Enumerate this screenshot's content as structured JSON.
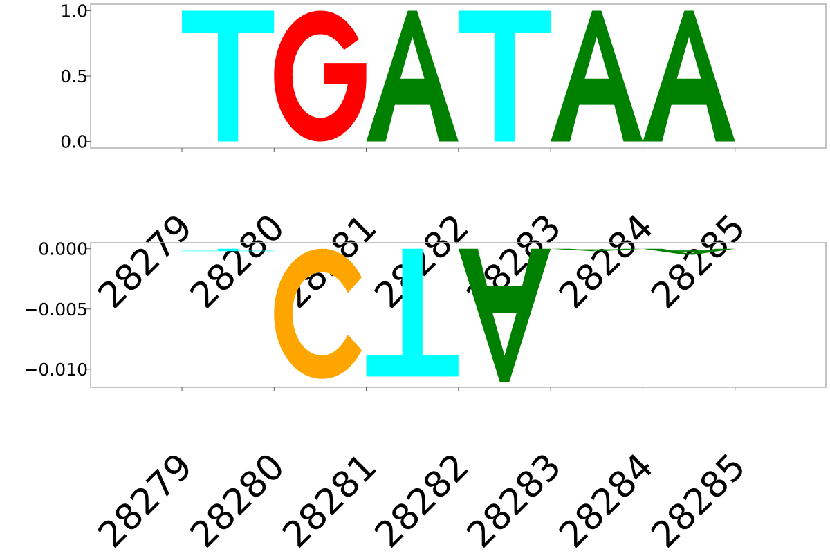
{
  "chart_data": [
    {
      "type": "sequence-logo",
      "panel": "top",
      "ylim": [
        -0.05,
        1.05
      ],
      "yticks": [
        {
          "value": 0.0,
          "label": "0.0"
        },
        {
          "value": 0.5,
          "label": "0.5"
        },
        {
          "value": 1.0,
          "label": "1.0"
        }
      ],
      "x_positions": [
        28279,
        28280,
        28281,
        28282,
        28283,
        28284,
        28285
      ],
      "xtick_labels": [
        "28279",
        "28280",
        "28281",
        "28282",
        "28283",
        "28284",
        "28285"
      ],
      "letters": [
        {
          "position": 28279,
          "base": "T",
          "value": 1.0
        },
        {
          "position": 28280,
          "base": "G",
          "value": 1.0
        },
        {
          "position": 28281,
          "base": "A",
          "value": 1.0
        },
        {
          "position": 28282,
          "base": "T",
          "value": 1.0
        },
        {
          "position": 28283,
          "base": "A",
          "value": 1.0
        },
        {
          "position": 28284,
          "base": "A",
          "value": 1.0
        }
      ]
    },
    {
      "type": "sequence-logo",
      "panel": "bottom",
      "ylim": [
        -0.0115,
        0.0005
      ],
      "yticks": [
        {
          "value": 0.0,
          "label": "0.000"
        },
        {
          "value": -0.005,
          "label": "−0.005"
        },
        {
          "value": -0.01,
          "label": "−0.010"
        }
      ],
      "x_positions": [
        28279,
        28280,
        28281,
        28282,
        28283,
        28284,
        28285
      ],
      "xtick_labels": [
        "28279",
        "28280",
        "28281",
        "28282",
        "28283",
        "28284",
        "28285"
      ],
      "letters": [
        {
          "position": 28279,
          "base": "T",
          "value": -0.0002
        },
        {
          "position": 28280,
          "base": "C",
          "value": -0.0108
        },
        {
          "position": 28281,
          "base": "T",
          "value": -0.0106
        },
        {
          "position": 28282,
          "base": "A",
          "value": -0.0111
        },
        {
          "position": 28283,
          "base": "A",
          "value": -0.0002
        },
        {
          "position": 28284,
          "base": "A",
          "value": -0.0005
        }
      ]
    }
  ],
  "colors": {
    "A": "#008000",
    "C": "#ffa500",
    "G": "#ff0000",
    "T": "#00ffff",
    "axis": "#b0b0b0",
    "text": "#000000"
  }
}
